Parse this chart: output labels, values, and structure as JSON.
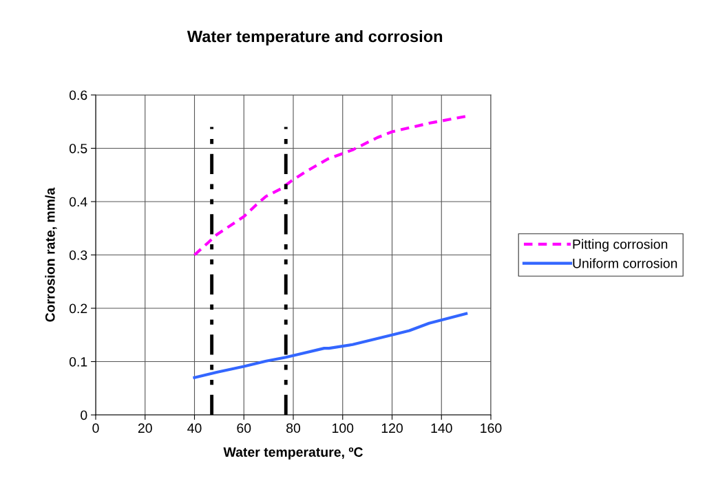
{
  "chart_data": {
    "type": "line",
    "title": "Water temperature and corrosion",
    "xlabel": "Water temperature, ºC",
    "ylabel": "Corrosion rate, mm/a",
    "xlim": [
      0,
      160
    ],
    "xticks": [
      0,
      20,
      40,
      60,
      80,
      100,
      120,
      140,
      160
    ],
    "ylim": [
      0,
      0.6
    ],
    "yticks": [
      0,
      0.1,
      0.2,
      0.3,
      0.4,
      0.5,
      0.6
    ],
    "grid": true,
    "legend": "right",
    "marker": "none",
    "series": [
      {
        "name": "Pitting corrosion",
        "color": "#ff00ff",
        "line_style": "dashed",
        "x": [
          40,
          45.5,
          49,
          60,
          65,
          69,
          75,
          79,
          85,
          94,
          104,
          114,
          120,
          135,
          150
        ],
        "values": [
          0.3,
          0.323,
          0.338,
          0.372,
          0.394,
          0.41,
          0.424,
          0.438,
          0.456,
          0.48,
          0.497,
          0.52,
          0.531,
          0.547,
          0.56
        ]
      },
      {
        "name": "Uniform corrosion",
        "color": "#3366ff",
        "line_style": "solid",
        "x": [
          40,
          49,
          60,
          69,
          77,
          92.5,
          94.5,
          104,
          120,
          127,
          135,
          150
        ],
        "values": [
          0.07,
          0.08,
          0.091,
          0.101,
          0.108,
          0.125,
          0.125,
          0.132,
          0.15,
          0.158,
          0.172,
          0.19
        ]
      },
      {
        "color": "#000000",
        "line_style": "dashed",
        "x": [
          47,
          47
        ],
        "values": [
          0,
          0.54
        ]
      },
      {
        "color": "#000000",
        "line_style": "dashed",
        "x": [
          77,
          77
        ],
        "values": [
          0,
          0.54
        ]
      }
    ]
  }
}
